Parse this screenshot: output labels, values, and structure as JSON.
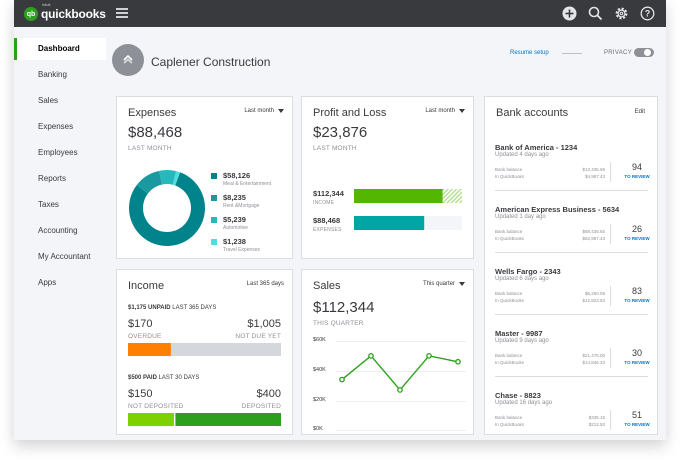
{
  "brand": {
    "small": "intuit",
    "name": "quickbooks",
    "logo": "qb"
  },
  "top_icons": [
    "plus-icon",
    "search-icon",
    "gear-icon",
    "help-icon"
  ],
  "sidebar": {
    "items": [
      {
        "label": "Dashboard",
        "active": true
      },
      {
        "label": "Banking"
      },
      {
        "label": "Sales"
      },
      {
        "label": "Expenses"
      },
      {
        "label": "Employees"
      },
      {
        "label": "Reports"
      },
      {
        "label": "Taxes"
      },
      {
        "label": "Accounting"
      },
      {
        "label": "My Accountant"
      },
      {
        "label": "Apps"
      }
    ]
  },
  "header": {
    "company_name": "Caplener Construction",
    "resume_setup": "Resume setup",
    "privacy": "PRIVACY",
    "privacy_on": false
  },
  "expenses": {
    "title": "Expenses",
    "period": "Last month",
    "amount": "$88,468",
    "amount_label": "LAST MONTH",
    "categories": [
      {
        "amount": "$58,126",
        "name": "Meal & Entertainment",
        "color": "#00838a",
        "value": 58126
      },
      {
        "amount": "$8,235",
        "name": "Rent &Mortgage",
        "color": "#1a9aa0",
        "value": 8235
      },
      {
        "amount": "$5,239",
        "name": "Automotive",
        "color": "#25b8bc",
        "value": 5239
      },
      {
        "amount": "$1,238",
        "name": "Travel Expenses",
        "color": "#4fdde0",
        "value": 1238
      }
    ]
  },
  "profit_loss": {
    "title": "Profit and Loss",
    "period": "Last month",
    "amount": "$23,876",
    "amount_label": "LAST MONTH",
    "income_amount": "$112,344",
    "income_label": "INCOME",
    "income_fill": 0.82,
    "income_color": "#53b700",
    "expenses_amount": "$88,468",
    "expenses_label": "EXPENSES",
    "expenses_fill": 0.65,
    "expenses_color": "#00a6a4"
  },
  "bank_accounts": {
    "title": "Bank accounts",
    "edit_label": "Edit",
    "accounts": [
      {
        "name": "Bank of America - 1234",
        "updated": "Updated 4 days ago",
        "bank_balance_label": "Bank balance",
        "bank_balance": "$12,435.65",
        "qb_label": "In QuickBooks",
        "qb_balance": "$4,987.43",
        "count": "94",
        "review_label": "TO REVIEW"
      },
      {
        "name": "American Express Business - 5634",
        "updated": "Updated 1 day ago",
        "bank_balance_label": "Bank balance",
        "bank_balance": "$88,435.65",
        "qb_label": "In QuickBooks",
        "qb_balance": "$62,987.43",
        "count": "26",
        "review_label": "TO REVIEW"
      },
      {
        "name": "Wells Fargo - 2343",
        "updated": "Updated 6 days ago",
        "bank_balance_label": "Bank balance",
        "bank_balance": "$6,250.08",
        "qb_label": "In QuickBooks",
        "qb_balance": "$12,823.53",
        "count": "83",
        "review_label": "TO REVIEW"
      },
      {
        "name": "Master - 9987",
        "updated": "Updated 9 days ago",
        "bank_balance_label": "Bank balance",
        "bank_balance": "$21,475.00",
        "qb_label": "In QuickBooks",
        "qb_balance": "$14,846.33",
        "count": "30",
        "review_label": "TO REVIEW"
      },
      {
        "name": "Chase - 8823",
        "updated": "Updated 16 days ago",
        "bank_balance_label": "Bank balance",
        "bank_balance": "$335.15",
        "qb_label": "In QuickBooks",
        "qb_balance": "$212.53",
        "count": "51",
        "review_label": "TO REVIEW"
      }
    ]
  },
  "income": {
    "title": "Income",
    "period": "Last 365 days",
    "unpaid_amount": "$1,175",
    "unpaid_label": "UNPAID",
    "unpaid_period": "LAST 365 DAYS",
    "overdue_amount": "$170",
    "overdue_label": "OVERDUE",
    "not_due_amount": "$1,005",
    "not_due_label": "NOT DUE YET",
    "overdue_color": "#ff8000",
    "not_due_color": "#d4d7dc",
    "overdue_fraction": 0.28,
    "paid_amount": "$500",
    "paid_label": "PAID",
    "paid_period": "LAST 30 DAYS",
    "not_deposited_amount": "$150",
    "not_deposited_label": "NOT DEPOSITED",
    "deposited_amount": "$400",
    "deposited_label": "DEPOSITED",
    "not_deposited_color": "#7fd000",
    "deposited_color": "#2ca01c",
    "not_deposited_fraction": 0.3
  },
  "sales": {
    "title": "Sales",
    "period": "This quarter",
    "amount": "$112,344",
    "amount_label": "THIS QUARTER"
  },
  "chart_data": {
    "type": "line",
    "title": "Sales",
    "y_ticks": [
      "$60K",
      "$40K",
      "$20K",
      "$0K"
    ],
    "ylim": [
      0,
      60000
    ],
    "points": [
      34000,
      50000,
      27000,
      50000,
      46000
    ],
    "line_color": "#2ca01c"
  }
}
